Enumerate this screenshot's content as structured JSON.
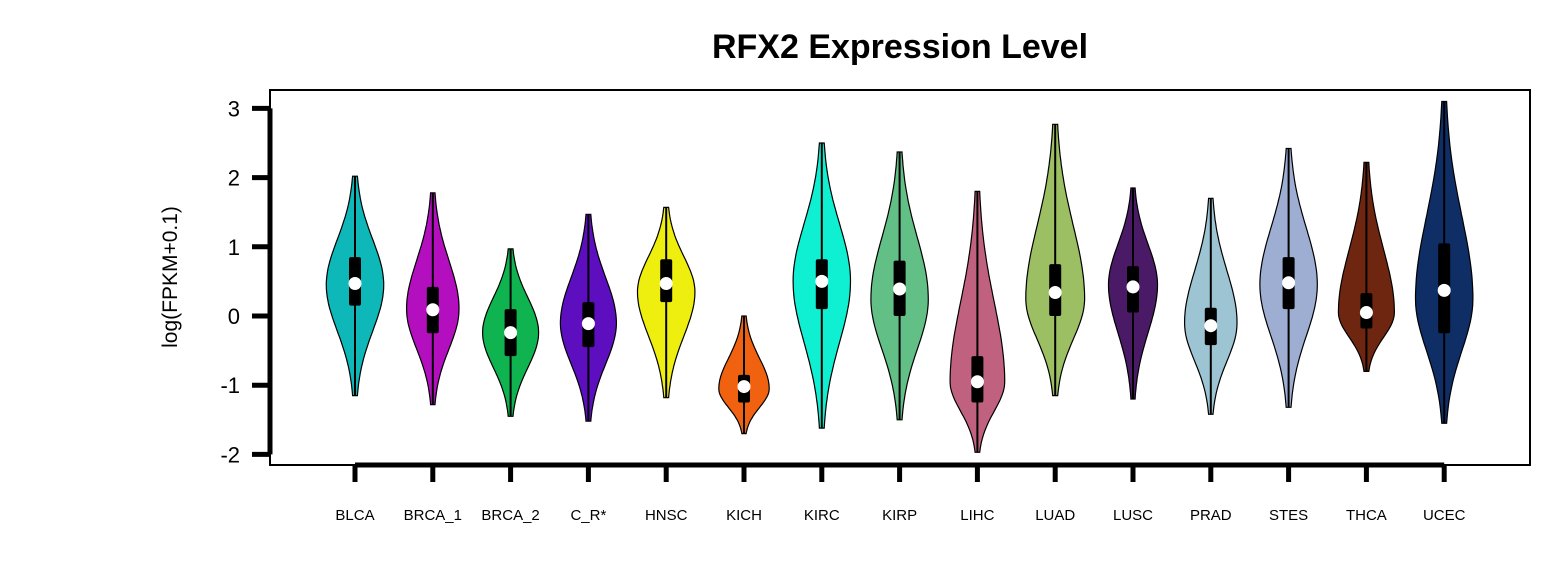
{
  "chart_data": {
    "type": "violin",
    "title": "RFX2 Expression Level",
    "xlabel": "",
    "ylabel": "log(FPKM+0.1)",
    "ylim": [
      -2.1,
      3.3
    ],
    "yticks": [
      "-2",
      "-1",
      "0",
      "1",
      "2",
      "3"
    ],
    "grid": false,
    "legend": "none",
    "categories": [
      "BLCA",
      "BRCA_1",
      "BRCA_2",
      "C_R*",
      "HNSC",
      "KICH",
      "KIRC",
      "KIRP",
      "LIHC",
      "LUAD",
      "LUSC",
      "PRAD",
      "STES",
      "THCA",
      "UCEC"
    ],
    "colors": [
      "#0fb8b8",
      "#b30fbf",
      "#0fb350",
      "#5d0fc0",
      "#efef0f",
      "#f0620f",
      "#0fefd2",
      "#62bf86",
      "#c0627f",
      "#9bbf62",
      "#4a1a66",
      "#9dc4d2",
      "#9daed2",
      "#6e2610",
      "#0f2e66"
    ],
    "violins": [
      {
        "min": -1.15,
        "max": 2.02,
        "q1": 0.15,
        "median": 0.47,
        "q3": 0.85,
        "density_peak": 0.45,
        "width": 0.82
      },
      {
        "min": -1.28,
        "max": 1.78,
        "q1": -0.25,
        "median": 0.09,
        "q3": 0.42,
        "density_peak": 0.1,
        "width": 0.75
      },
      {
        "min": -1.45,
        "max": 0.97,
        "q1": -0.58,
        "median": -0.24,
        "q3": 0.1,
        "density_peak": -0.24,
        "width": 0.8
      },
      {
        "min": -1.52,
        "max": 1.47,
        "q1": -0.45,
        "median": -0.11,
        "q3": 0.2,
        "density_peak": -0.1,
        "width": 0.8
      },
      {
        "min": -1.18,
        "max": 1.57,
        "q1": 0.2,
        "median": 0.47,
        "q3": 0.82,
        "density_peak": 0.35,
        "width": 0.82
      },
      {
        "min": -1.7,
        "max": 0.0,
        "q1": -1.25,
        "median": -1.02,
        "q3": -0.85,
        "density_peak": -1.05,
        "width": 0.72
      },
      {
        "min": -1.62,
        "max": 2.5,
        "q1": 0.1,
        "median": 0.5,
        "q3": 0.82,
        "density_peak": 0.5,
        "width": 0.82
      },
      {
        "min": -1.5,
        "max": 2.37,
        "q1": 0.0,
        "median": 0.39,
        "q3": 0.8,
        "density_peak": 0.25,
        "width": 0.82
      },
      {
        "min": -1.97,
        "max": 1.8,
        "q1": -1.25,
        "median": -0.95,
        "q3": -0.58,
        "density_peak": -0.95,
        "width": 0.78
      },
      {
        "min": -1.15,
        "max": 2.77,
        "q1": 0.0,
        "median": 0.34,
        "q3": 0.75,
        "density_peak": 0.25,
        "width": 0.84
      },
      {
        "min": -1.2,
        "max": 1.85,
        "q1": 0.05,
        "median": 0.42,
        "q3": 0.72,
        "density_peak": 0.45,
        "width": 0.7
      },
      {
        "min": -1.42,
        "max": 1.7,
        "q1": -0.42,
        "median": -0.14,
        "q3": 0.12,
        "density_peak": -0.1,
        "width": 0.75
      },
      {
        "min": -1.32,
        "max": 2.42,
        "q1": 0.1,
        "median": 0.48,
        "q3": 0.85,
        "density_peak": 0.45,
        "width": 0.82
      },
      {
        "min": -0.8,
        "max": 2.22,
        "q1": -0.18,
        "median": 0.05,
        "q3": 0.33,
        "density_peak": 0.05,
        "width": 0.8
      },
      {
        "min": -1.55,
        "max": 3.1,
        "q1": -0.25,
        "median": 0.37,
        "q3": 1.05,
        "density_peak": 0.25,
        "width": 0.82
      }
    ]
  }
}
